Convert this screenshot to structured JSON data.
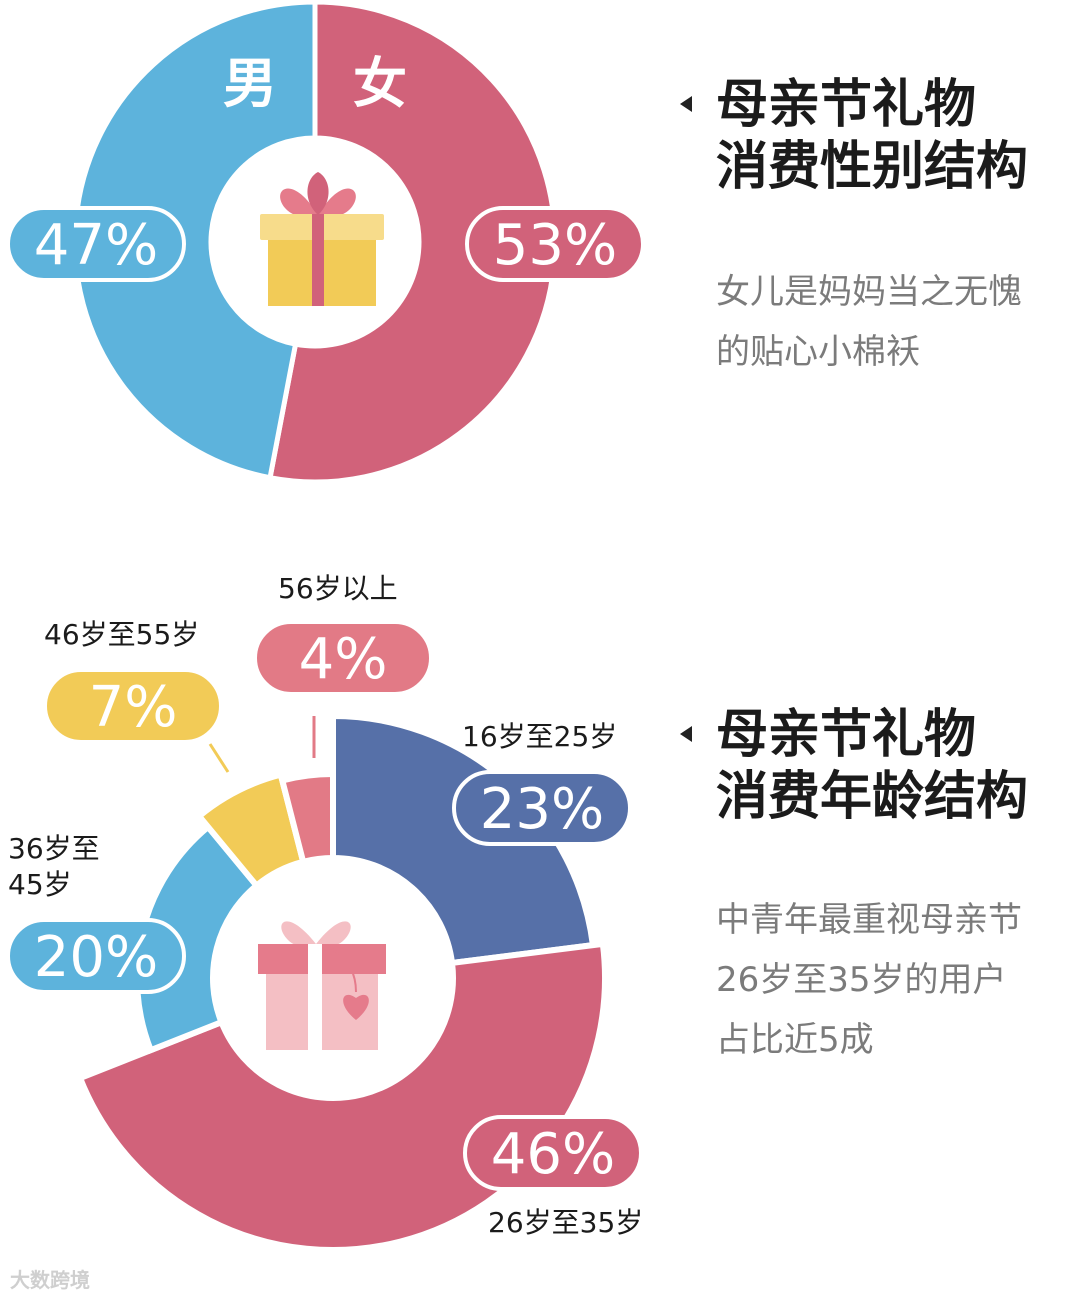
{
  "chart_data": [
    {
      "type": "pie",
      "title": "母亲节礼物消费性别结构",
      "categories": [
        "女",
        "男"
      ],
      "values": [
        53,
        47
      ],
      "value_labels": [
        "53%",
        "47%"
      ],
      "colors": [
        "#d1627a",
        "#5db3dc"
      ]
    },
    {
      "type": "pie",
      "title": "母亲节礼物消费年龄结构",
      "categories": [
        "16岁至25岁",
        "26岁至35岁",
        "36岁至45岁",
        "46岁至55岁",
        "56岁以上"
      ],
      "values": [
        23,
        46,
        20,
        7,
        4
      ],
      "value_labels": [
        "23%",
        "46%",
        "20%",
        "7%",
        "4%"
      ],
      "colors": [
        "#5670a8",
        "#d1627a",
        "#5db3dc",
        "#f2cb57",
        "#e27a86"
      ]
    }
  ],
  "gender": {
    "title_lines": [
      "母亲节礼物",
      "消费性别结构"
    ],
    "note_lines": [
      "女儿是妈妈当之无愧",
      "的贴心小棉袄"
    ]
  },
  "age": {
    "title_lines": [
      "母亲节礼物",
      "消费年龄结构"
    ],
    "note_lines": [
      "中青年最重视母亲节",
      "26岁至35岁的用户",
      "占比近5成"
    ],
    "label_lines": {
      "16岁至25岁": [
        "16岁至25岁"
      ],
      "26岁至35岁": [
        "26岁至35岁"
      ],
      "36岁至45岁": [
        "36岁至",
        "45岁"
      ],
      "46岁至55岁": [
        "46岁至55岁"
      ],
      "56岁以上": [
        "56岁以上"
      ]
    }
  },
  "watermark": "大数跨境",
  "icons": [
    "gift-box-icon",
    "gift-box-heart-icon"
  ],
  "colors": {
    "pink": "#d1627a",
    "blue": "#5db3dc",
    "navy": "#5670a8",
    "yellow": "#f2cb57",
    "light_pink": "#e27a86"
  }
}
